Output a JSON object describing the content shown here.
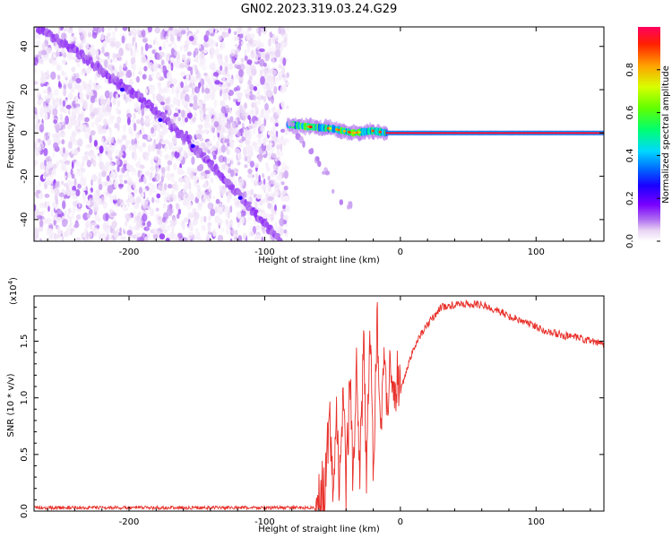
{
  "figure_title": "GN02.2023.319.03.24.G29",
  "chart_data": [
    {
      "type": "heatmap",
      "title": "",
      "xlabel": "Height of straight line (km)",
      "ylabel": "Frequency (Hz)",
      "xlim": [
        -270,
        150
      ],
      "ylim": [
        -50,
        49
      ],
      "xticks": [
        -200,
        -100,
        0,
        100
      ],
      "yticks": [
        -40,
        -20,
        0,
        20,
        40
      ],
      "colorbar": {
        "label": "Normalized spectral amplitude",
        "range": [
          0.0,
          1.0
        ],
        "ticks": [
          "0.0",
          "0.2",
          "0.4",
          "0.6",
          "0.8"
        ],
        "colors": [
          "#ffffff",
          "#e8d4f4",
          "#b070f0",
          "#7a00ff",
          "#1a00ff",
          "#0060ff",
          "#00d8ff",
          "#00ff70",
          "#60ff00",
          "#d8ff00",
          "#ffa000",
          "#ff2000",
          "#ff0060"
        ]
      },
      "noise_region": {
        "x_start": -270,
        "x_end": -83,
        "freq_range": [
          -50,
          49
        ],
        "level": 0.05
      },
      "features": [
        {
          "name": "",
          "description_points": [
            {
              "x": -270,
              "y": 50
            },
            {
              "x": -240,
              "y": 38
            },
            {
              "x": -210,
              "y": 24
            },
            {
              "x": -185,
              "y": 13
            },
            {
              "x": -160,
              "y": -2
            },
            {
              "x": -140,
              "y": -14
            },
            {
              "x": -120,
              "y": -28
            },
            {
              "x": -100,
              "y": -42
            },
            {
              "x": -88,
              "y": -50
            }
          ],
          "amplitude": 0.15
        },
        {
          "name": "",
          "description_points": [
            {
              "x": -83,
              "y": 4
            },
            {
              "x": -70,
              "y": 3
            },
            {
              "x": -50,
              "y": 2
            },
            {
              "x": -35,
              "y": 0
            },
            {
              "x": -20,
              "y": 1
            },
            {
              "x": -10,
              "y": 0
            },
            {
              "x": 0,
              "y": 0
            },
            {
              "x": 150,
              "y": 0
            }
          ],
          "amplitude": 0.95
        },
        {
          "name": "",
          "description_points": [
            {
              "x": -85,
              "y": 8
            },
            {
              "x": -70,
              "y": -5
            },
            {
              "x": -55,
              "y": -18
            },
            {
              "x": -45,
              "y": -32
            },
            {
              "x": -35,
              "y": -34
            }
          ],
          "amplitude": 0.1
        }
      ]
    },
    {
      "type": "line",
      "title": "",
      "xlabel": "Height of straight line (km)",
      "ylabel": "SNR (10 * v/v)",
      "y_multiplier": "(x10",
      "y_multiplier_exp": "4",
      "y_multiplier_close": ")",
      "xlim": [
        -270,
        150
      ],
      "ylim": [
        0.0,
        1.9
      ],
      "xticks": [
        -200,
        -100,
        0,
        100
      ],
      "yticks": [
        0.0,
        0.5,
        1.0,
        1.5
      ],
      "ytick_labels": [
        "0.0",
        "0.5",
        "1.0",
        "1.5"
      ],
      "color": "#e8302a",
      "series": [
        {
          "x": [
            -270,
            -200,
            -100,
            -65,
            -60,
            -55,
            -52,
            -50,
            -47,
            -45,
            -42,
            -40,
            -37,
            -35,
            -32,
            -30,
            -27,
            -25,
            -22,
            -20,
            -17,
            -15,
            -12,
            -10,
            -7,
            -5,
            -2,
            0,
            5,
            10,
            20,
            30,
            40,
            50,
            60,
            70,
            80,
            90,
            100,
            110,
            120,
            130,
            140,
            150
          ],
          "y": [
            0.02,
            0.02,
            0.02,
            0.02,
            0.06,
            0.3,
            0.85,
            0.15,
            0.98,
            0.1,
            1.1,
            0.2,
            1.2,
            0.3,
            1.3,
            0.25,
            1.45,
            0.4,
            1.6,
            0.35,
            1.7,
            0.6,
            1.5,
            0.8,
            1.45,
            0.9,
            1.2,
            1.05,
            1.25,
            1.45,
            1.65,
            1.8,
            1.82,
            1.83,
            1.82,
            1.78,
            1.72,
            1.68,
            1.63,
            1.58,
            1.55,
            1.53,
            1.5,
            1.47
          ]
        }
      ]
    }
  ]
}
